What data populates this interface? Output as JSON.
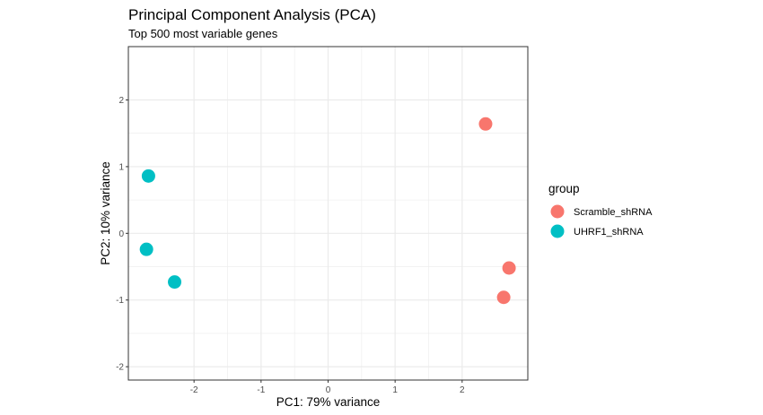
{
  "chart_data": {
    "type": "scatter",
    "title": "Principal Component Analysis (PCA)",
    "subtitle": "Top 500 most variable genes",
    "xlabel": "PC1: 79% variance",
    "ylabel": "PC2: 10% variance",
    "xlim": [
      -2.98,
      2.98
    ],
    "ylim": [
      -2.2,
      2.8
    ],
    "xticks": [
      -2,
      -1,
      0,
      1,
      2
    ],
    "yticks": [
      -2,
      -1,
      0,
      1,
      2
    ],
    "grid": true,
    "legend": {
      "title": "group",
      "position": "right"
    },
    "series": [
      {
        "name": "Scramble_shRNA",
        "color": "#F8766D",
        "points": [
          {
            "x": 2.35,
            "y": 1.64
          },
          {
            "x": 2.7,
            "y": -0.52
          },
          {
            "x": 2.62,
            "y": -0.96
          }
        ]
      },
      {
        "name": "UHRF1_shRNA",
        "color": "#00BFC4",
        "points": [
          {
            "x": -2.68,
            "y": 0.86
          },
          {
            "x": -2.71,
            "y": -0.24
          },
          {
            "x": -2.29,
            "y": -0.73
          }
        ]
      }
    ]
  }
}
